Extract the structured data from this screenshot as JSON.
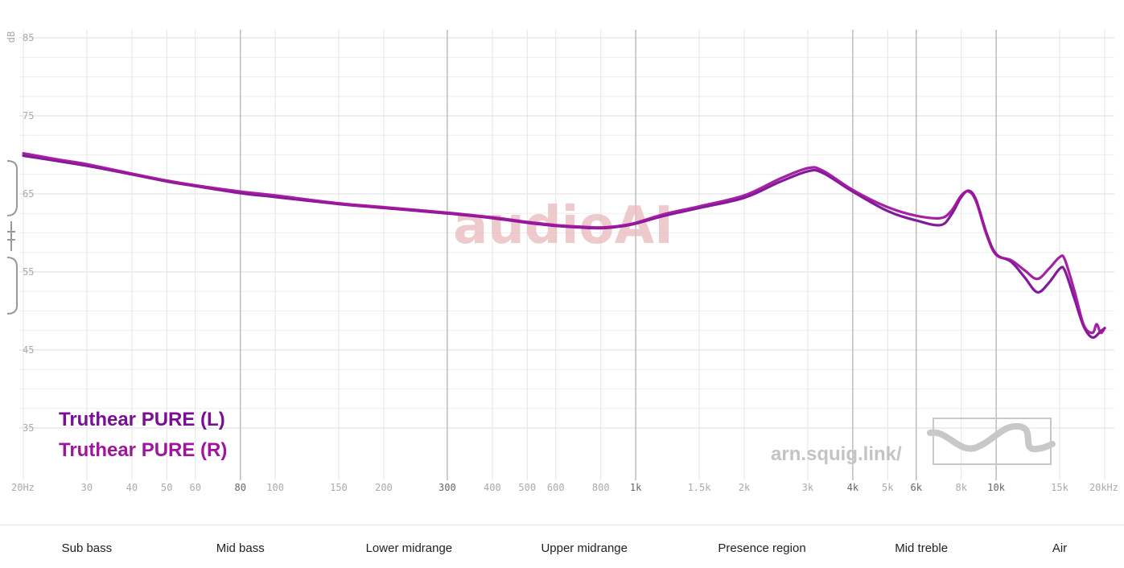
{
  "chart_data": {
    "type": "line",
    "ylabel": "dB",
    "xscale": "log",
    "xlim": [
      20,
      20000
    ],
    "ylim": [
      30,
      87
    ],
    "grid": true,
    "legend_position": "bottom-left",
    "y_ticks": [
      {
        "value": 85,
        "label": "85"
      },
      {
        "value": 75,
        "label": "75"
      },
      {
        "value": 65,
        "label": "65"
      },
      {
        "value": 55,
        "label": "55"
      },
      {
        "value": 45,
        "label": "45"
      },
      {
        "value": 35,
        "label": "35"
      }
    ],
    "x_ticks": [
      {
        "value": 20,
        "label": "20Hz",
        "major": false
      },
      {
        "value": 30,
        "label": "30",
        "major": false
      },
      {
        "value": 40,
        "label": "40",
        "major": false
      },
      {
        "value": 50,
        "label": "50",
        "major": false
      },
      {
        "value": 60,
        "label": "60",
        "major": false
      },
      {
        "value": 80,
        "label": "80",
        "major": true
      },
      {
        "value": 100,
        "label": "100",
        "major": false
      },
      {
        "value": 150,
        "label": "150",
        "major": false
      },
      {
        "value": 200,
        "label": "200",
        "major": false
      },
      {
        "value": 300,
        "label": "300",
        "major": true
      },
      {
        "value": 400,
        "label": "400",
        "major": false
      },
      {
        "value": 500,
        "label": "500",
        "major": false
      },
      {
        "value": 600,
        "label": "600",
        "major": false
      },
      {
        "value": 800,
        "label": "800",
        "major": false
      },
      {
        "value": 1000,
        "label": "1k",
        "major": true
      },
      {
        "value": 1500,
        "label": "1.5k",
        "major": false
      },
      {
        "value": 2000,
        "label": "2k",
        "major": false
      },
      {
        "value": 3000,
        "label": "3k",
        "major": false
      },
      {
        "value": 4000,
        "label": "4k",
        "major": true
      },
      {
        "value": 5000,
        "label": "5k",
        "major": false
      },
      {
        "value": 6000,
        "label": "6k",
        "major": true
      },
      {
        "value": 8000,
        "label": "8k",
        "major": false
      },
      {
        "value": 10000,
        "label": "10k",
        "major": true
      },
      {
        "value": 15000,
        "label": "15k",
        "major": false
      },
      {
        "value": 20000,
        "label": "20kHz",
        "major": false
      }
    ],
    "series": [
      {
        "name": "Truthear PURE (L)",
        "color": "#7a0e96",
        "points": [
          [
            20,
            69.9
          ],
          [
            25,
            69.2
          ],
          [
            30,
            68.6
          ],
          [
            40,
            67.5
          ],
          [
            50,
            66.6
          ],
          [
            60,
            66.0
          ],
          [
            80,
            65.1
          ],
          [
            100,
            64.6
          ],
          [
            150,
            63.7
          ],
          [
            200,
            63.2
          ],
          [
            300,
            62.5
          ],
          [
            400,
            61.9
          ],
          [
            500,
            61.3
          ],
          [
            600,
            60.9
          ],
          [
            700,
            60.7
          ],
          [
            800,
            60.6
          ],
          [
            900,
            60.8
          ],
          [
            1000,
            61.2
          ],
          [
            1200,
            62.2
          ],
          [
            1500,
            63.2
          ],
          [
            2000,
            64.5
          ],
          [
            2500,
            66.5
          ],
          [
            3000,
            67.9
          ],
          [
            3300,
            67.7
          ],
          [
            4000,
            65.3
          ],
          [
            5000,
            62.8
          ],
          [
            6000,
            61.6
          ],
          [
            7000,
            61.0
          ],
          [
            7500,
            62.3
          ],
          [
            8000,
            64.6
          ],
          [
            8400,
            65.4
          ],
          [
            8800,
            64.2
          ],
          [
            9400,
            60.0
          ],
          [
            10000,
            57.3
          ],
          [
            11000,
            56.3
          ],
          [
            12000,
            54.3
          ],
          [
            13000,
            52.4
          ],
          [
            14000,
            53.6
          ],
          [
            15000,
            55.4
          ],
          [
            15500,
            55.2
          ],
          [
            16500,
            51.5
          ],
          [
            17500,
            48.0
          ],
          [
            18500,
            46.6
          ],
          [
            19500,
            47.4
          ],
          [
            20000,
            47.8
          ]
        ]
      },
      {
        "name": "Truthear PURE (R)",
        "color": "#a0159e",
        "points": [
          [
            20,
            70.2
          ],
          [
            25,
            69.4
          ],
          [
            30,
            68.8
          ],
          [
            40,
            67.6
          ],
          [
            50,
            66.7
          ],
          [
            60,
            66.1
          ],
          [
            80,
            65.3
          ],
          [
            100,
            64.8
          ],
          [
            150,
            63.8
          ],
          [
            200,
            63.3
          ],
          [
            300,
            62.6
          ],
          [
            400,
            62.0
          ],
          [
            500,
            61.4
          ],
          [
            600,
            61.0
          ],
          [
            700,
            60.8
          ],
          [
            800,
            60.7
          ],
          [
            900,
            60.9
          ],
          [
            1000,
            61.3
          ],
          [
            1200,
            62.4
          ],
          [
            1500,
            63.4
          ],
          [
            2000,
            64.8
          ],
          [
            2500,
            66.9
          ],
          [
            3000,
            68.3
          ],
          [
            3300,
            68.0
          ],
          [
            4000,
            65.5
          ],
          [
            5000,
            63.3
          ],
          [
            6000,
            62.2
          ],
          [
            7000,
            61.9
          ],
          [
            7500,
            62.8
          ],
          [
            8000,
            64.8
          ],
          [
            8400,
            65.3
          ],
          [
            8800,
            64.0
          ],
          [
            9400,
            59.8
          ],
          [
            10000,
            57.2
          ],
          [
            11000,
            56.5
          ],
          [
            12000,
            55.2
          ],
          [
            13000,
            54.1
          ],
          [
            14000,
            55.4
          ],
          [
            15000,
            56.9
          ],
          [
            15500,
            56.6
          ],
          [
            16500,
            52.5
          ],
          [
            17500,
            48.2
          ],
          [
            18500,
            47.2
          ],
          [
            19000,
            48.3
          ],
          [
            19500,
            47.2
          ],
          [
            20000,
            47.8
          ]
        ]
      }
    ],
    "bands": [
      {
        "label": "Sub bass",
        "center_hz": 30
      },
      {
        "label": "Mid bass",
        "center_hz": 80
      },
      {
        "label": "Lower midrange",
        "center_hz": 235
      },
      {
        "label": "Upper midrange",
        "center_hz": 720
      },
      {
        "label": "Presence region",
        "center_hz": 2240
      },
      {
        "label": "Mid treble",
        "center_hz": 6200
      },
      {
        "label": "Air",
        "center_hz": 15000
      }
    ]
  },
  "watermark": "audioAI",
  "site_label": "arn.squig.link/"
}
